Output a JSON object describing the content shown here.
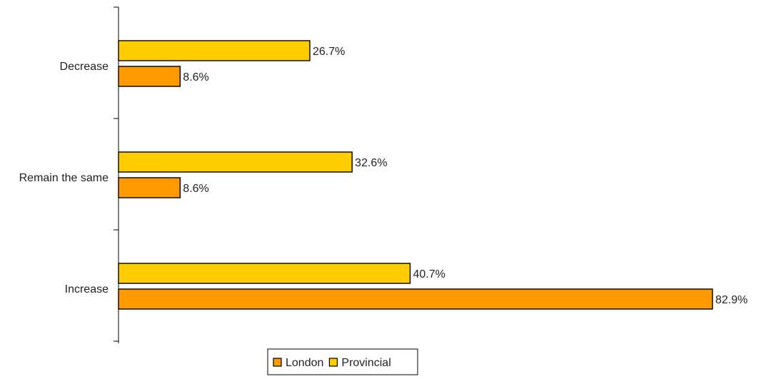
{
  "chart_data": {
    "type": "bar",
    "orientation": "horizontal",
    "categories": [
      "Decrease",
      "Remain the same",
      "Increase"
    ],
    "series": [
      {
        "name": "London",
        "values": [
          8.6,
          8.6,
          82.9
        ],
        "color": "#ff9900"
      },
      {
        "name": "Provincial",
        "values": [
          26.7,
          32.6,
          40.7
        ],
        "color": "#ffcc00"
      }
    ],
    "value_suffix": "%",
    "xlim": [
      0,
      85
    ],
    "grid": false,
    "legend": {
      "position": "bottom",
      "items": [
        "London",
        "Provincial"
      ]
    },
    "title": "",
    "xlabel": "",
    "ylabel": ""
  }
}
